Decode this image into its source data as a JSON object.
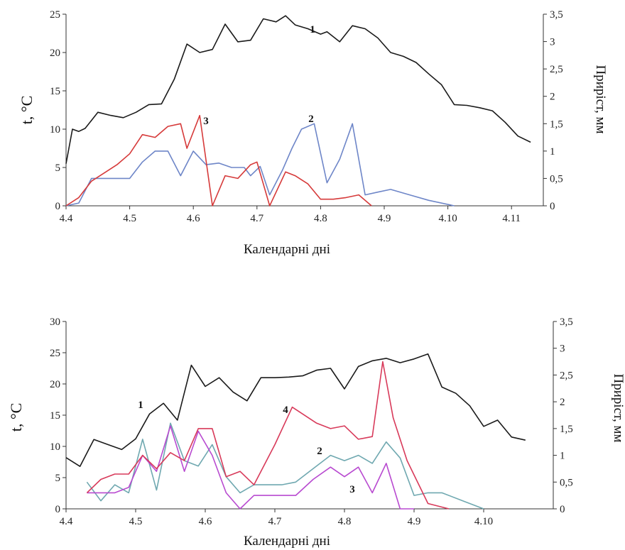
{
  "chart_data": [
    {
      "type": "line",
      "xlabel": "Календарні дні",
      "ylabel": "t, °C",
      "y2label": "Приріст, мм",
      "xticks": [
        "4.4",
        "4.5",
        "4.6",
        "4.7",
        "4.8",
        "4.9",
        "4.10",
        "4.11"
      ],
      "ylim": [
        0,
        25
      ],
      "yticks": [
        "0",
        "5",
        "10",
        "15",
        "20",
        "25"
      ],
      "y2lim": [
        0,
        3.5
      ],
      "y2ticks": [
        "0",
        "0,5",
        "1",
        "1,5",
        "2",
        "2,5",
        "3",
        "3,5"
      ],
      "series": [
        {
          "name": "1",
          "axis": "left",
          "color": "#1a1a1a",
          "x": [
            4.4,
            4.41,
            4.42,
            4.43,
            4.45,
            4.47,
            4.49,
            4.51,
            4.53,
            4.55,
            4.57,
            4.59,
            4.61,
            4.63,
            4.65,
            4.67,
            4.69,
            4.71,
            4.73,
            4.745,
            4.76,
            4.78,
            4.8,
            4.81,
            4.83,
            4.85,
            4.87,
            4.89,
            4.91,
            4.93,
            4.95,
            4.97,
            4.99,
            5.01,
            5.03,
            5.05,
            5.07,
            5.09,
            5.11,
            5.13
          ],
          "y": [
            5.5,
            10,
            9.7,
            10.1,
            12.2,
            11.8,
            11.5,
            12.2,
            13.2,
            13.3,
            16.5,
            21.1,
            20,
            20.4,
            23.7,
            21.4,
            21.6,
            24.4,
            24,
            24.8,
            23.6,
            23.1,
            22.4,
            22.7,
            21.4,
            23.5,
            23.1,
            21.9,
            20,
            19.5,
            18.7,
            17.2,
            15.8,
            13.2,
            13.1,
            12.8,
            12.4,
            10.9,
            9.1,
            8.3
          ]
        },
        {
          "name": "2",
          "axis": "right",
          "color": "#6e86c8",
          "x": [
            4.4,
            4.42,
            4.44,
            4.46,
            4.48,
            4.5,
            4.52,
            4.54,
            4.56,
            4.58,
            4.6,
            4.62,
            4.64,
            4.66,
            4.68,
            4.69,
            4.705,
            4.72,
            4.74,
            4.755,
            4.77,
            4.79,
            4.81,
            4.83,
            4.85,
            4.87,
            4.89,
            4.91,
            4.94,
            4.97,
            5.01
          ],
          "y": [
            0,
            0.05,
            0.5,
            0.5,
            0.5,
            0.5,
            0.8,
            1,
            1,
            0.55,
            1,
            0.75,
            0.78,
            0.7,
            0.7,
            0.55,
            0.72,
            0.2,
            0.65,
            1.05,
            1.4,
            1.5,
            0.42,
            0.85,
            1.5,
            0.2,
            0.25,
            0.3,
            0.2,
            0.1,
            0
          ]
        },
        {
          "name": "3",
          "axis": "right",
          "color": "#d63a3a",
          "x": [
            4.4,
            4.42,
            4.44,
            4.46,
            4.48,
            4.5,
            4.52,
            4.54,
            4.56,
            4.58,
            4.59,
            4.61,
            4.63,
            4.65,
            4.67,
            4.69,
            4.7,
            4.72,
            4.745,
            4.76,
            4.78,
            4.8,
            4.82,
            4.84,
            4.86,
            4.88
          ],
          "y": [
            0,
            0.15,
            0.45,
            0.6,
            0.75,
            0.95,
            1.3,
            1.25,
            1.45,
            1.5,
            1.05,
            1.65,
            0,
            0.55,
            0.5,
            0.75,
            0.8,
            0,
            0.62,
            0.55,
            0.4,
            0.12,
            0.12,
            0.15,
            0.2,
            0
          ]
        }
      ],
      "annotations": [
        "1",
        "2",
        "3"
      ]
    },
    {
      "type": "line",
      "xlabel": "Календарні дні",
      "ylabel": "t, °C",
      "y2label": "Приріст, мм",
      "xticks": [
        "4.4",
        "4.5",
        "4.6",
        "4.7",
        "4.8",
        "4.9",
        "4.10"
      ],
      "ylim": [
        0,
        30
      ],
      "yticks": [
        "0",
        "5",
        "10",
        "15",
        "20",
        "25",
        "30"
      ],
      "y2lim": [
        0,
        3.5
      ],
      "y2ticks": [
        "0",
        "0,5",
        "1",
        "1,5",
        "2",
        "2,5",
        "3",
        "3,5"
      ],
      "series": [
        {
          "name": "1",
          "axis": "left",
          "color": "#1a1a1a",
          "x": [
            4.4,
            4.42,
            4.44,
            4.46,
            4.48,
            4.5,
            4.52,
            4.54,
            4.56,
            4.58,
            4.6,
            4.62,
            4.64,
            4.66,
            4.68,
            4.7,
            4.72,
            4.74,
            4.76,
            4.78,
            4.8,
            4.82,
            4.84,
            4.86,
            4.88,
            4.9,
            4.92,
            4.94,
            4.96,
            4.98,
            5.0,
            5.02,
            5.04,
            5.06
          ],
          "y": [
            8.2,
            6.8,
            11.1,
            10.3,
            9.5,
            11.2,
            15.2,
            16.9,
            14.2,
            23,
            19.6,
            21,
            18.7,
            17.3,
            21,
            21,
            21.1,
            21.3,
            22.2,
            22.5,
            19.2,
            22.8,
            23.7,
            24.1,
            23.4,
            24,
            24.8,
            19.5,
            18.5,
            16.5,
            13.2,
            14.2,
            11.5,
            11
          ]
        },
        {
          "name": "2",
          "axis": "right",
          "color": "#6fa8b0",
          "x": [
            4.43,
            4.45,
            4.47,
            4.49,
            4.51,
            4.53,
            4.55,
            4.57,
            4.59,
            4.61,
            4.63,
            4.65,
            4.67,
            4.69,
            4.71,
            4.73,
            4.755,
            4.78,
            4.8,
            4.82,
            4.84,
            4.86,
            4.88,
            4.9,
            4.92,
            4.94,
            4.97,
            5.0
          ],
          "y": [
            0.5,
            0.15,
            0.45,
            0.3,
            1.3,
            0.35,
            1.6,
            0.9,
            0.8,
            1.2,
            0.6,
            0.3,
            0.45,
            0.45,
            0.45,
            0.5,
            0.75,
            1,
            0.9,
            1,
            0.85,
            1.25,
            0.95,
            0.25,
            0.3,
            0.3,
            0.15,
            0
          ]
        },
        {
          "name": "3",
          "axis": "right",
          "color": "#b84ad0",
          "x": [
            4.43,
            4.45,
            4.47,
            4.49,
            4.51,
            4.53,
            4.55,
            4.57,
            4.59,
            4.61,
            4.63,
            4.65,
            4.67,
            4.69,
            4.71,
            4.73,
            4.755,
            4.78,
            4.8,
            4.82,
            4.84,
            4.86,
            4.88,
            4.9
          ],
          "y": [
            0.3,
            0.3,
            0.3,
            0.4,
            1,
            0.7,
            1.55,
            0.7,
            1.45,
            1,
            0.3,
            0,
            0.25,
            0.25,
            0.25,
            0.25,
            0.55,
            0.78,
            0.6,
            0.78,
            0.3,
            0.85,
            0,
            0
          ]
        },
        {
          "name": "4",
          "axis": "right",
          "color": "#d83a5a",
          "x": [
            4.43,
            4.45,
            4.47,
            4.49,
            4.51,
            4.53,
            4.55,
            4.57,
            4.59,
            4.61,
            4.63,
            4.65,
            4.67,
            4.7,
            4.725,
            4.76,
            4.78,
            4.8,
            4.82,
            4.84,
            4.855,
            4.87,
            4.89,
            4.92,
            4.95
          ],
          "y": [
            0.3,
            0.55,
            0.65,
            0.65,
            1,
            0.75,
            1.05,
            0.9,
            1.5,
            1.5,
            0.6,
            0.7,
            0.45,
            1.2,
            1.9,
            1.6,
            1.5,
            1.55,
            1.3,
            1.35,
            2.75,
            1.7,
            0.9,
            0.1,
            0
          ]
        }
      ],
      "annotations": [
        "1",
        "2",
        "3",
        "4"
      ]
    }
  ]
}
